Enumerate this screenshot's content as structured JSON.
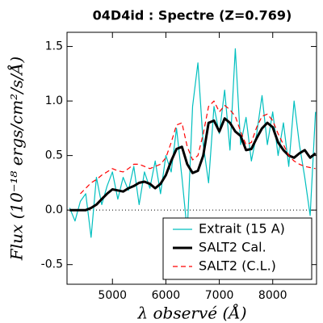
{
  "chart_data": {
    "type": "line",
    "title": "04D4id : Spectre (Z=0.769)",
    "x_label": "λ observé (Å)",
    "y_label": "Flux (10⁻¹⁸ ergs/cm²/s/Å)",
    "x": [
      4200,
      4300,
      4400,
      4500,
      4600,
      4700,
      4800,
      4900,
      5000,
      5100,
      5200,
      5300,
      5400,
      5500,
      5600,
      5700,
      5800,
      5900,
      6000,
      6100,
      6200,
      6300,
      6400,
      6500,
      6600,
      6700,
      6800,
      6900,
      7000,
      7100,
      7200,
      7300,
      7400,
      7500,
      7600,
      7700,
      7800,
      7900,
      8000,
      8100,
      8200,
      8300,
      8400,
      8500,
      8600,
      8700,
      8800
    ],
    "series": [
      {
        "name": "Extrait (15 A)",
        "color": "#00bfbf",
        "linewidth": 1.2,
        "linestyle": "solid",
        "values": [
          0.02,
          -0.1,
          0.08,
          0.15,
          -0.25,
          0.3,
          0.05,
          0.22,
          0.35,
          0.1,
          0.3,
          0.18,
          0.4,
          0.05,
          0.35,
          0.2,
          0.45,
          0.15,
          0.5,
          0.35,
          0.75,
          0.3,
          -0.2,
          0.95,
          1.35,
          0.6,
          0.25,
          0.95,
          0.7,
          1.1,
          0.55,
          1.48,
          0.6,
          0.85,
          0.45,
          0.7,
          1.05,
          0.6,
          0.9,
          0.5,
          0.8,
          0.4,
          1.0,
          0.6,
          0.3,
          -0.05,
          0.9
        ]
      },
      {
        "name": "SALT2 Cal.",
        "color": "#000000",
        "linewidth": 3,
        "linestyle": "solid",
        "values": [
          0.0,
          0.0,
          0.0,
          0.0,
          0.02,
          0.05,
          0.1,
          0.15,
          0.19,
          0.18,
          0.17,
          0.2,
          0.22,
          0.25,
          0.26,
          0.24,
          0.2,
          0.24,
          0.32,
          0.45,
          0.56,
          0.58,
          0.42,
          0.34,
          0.36,
          0.5,
          0.8,
          0.82,
          0.72,
          0.84,
          0.8,
          0.72,
          0.68,
          0.55,
          0.56,
          0.66,
          0.75,
          0.8,
          0.76,
          0.62,
          0.55,
          0.5,
          0.48,
          0.52,
          0.55,
          0.48,
          0.52
        ]
      },
      {
        "name": "SALT2 (C.L.)",
        "color": "#ff0000",
        "linewidth": 1.2,
        "linestyle": "dashed",
        "values": [
          null,
          null,
          0.15,
          0.2,
          0.25,
          0.28,
          0.32,
          0.35,
          0.38,
          0.36,
          0.35,
          0.38,
          0.42,
          0.42,
          0.4,
          0.38,
          0.4,
          0.42,
          0.48,
          0.62,
          0.78,
          0.8,
          0.58,
          0.46,
          0.5,
          0.7,
          0.95,
          1.0,
          0.9,
          0.96,
          0.92,
          0.86,
          0.72,
          0.6,
          0.62,
          0.76,
          0.86,
          0.88,
          0.82,
          0.7,
          0.6,
          0.5,
          0.45,
          0.42,
          0.4,
          0.39,
          0.38
        ]
      }
    ],
    "xlim": [
      4150,
      8820
    ],
    "ylim": [
      -0.68,
      1.63
    ],
    "xticks": [
      5000,
      6000,
      7000,
      8000
    ],
    "yticks": [
      -0.5,
      {
        "value": 0,
        "label": "0.0"
      },
      0.5,
      {
        "value": 1,
        "label": "1.0"
      },
      1.5
    ],
    "hline": 0,
    "legend": "lower right"
  }
}
